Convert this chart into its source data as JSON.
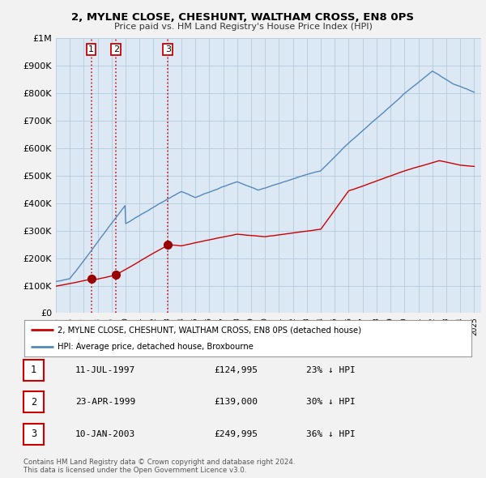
{
  "title": "2, MYLNE CLOSE, CHESHUNT, WALTHAM CROSS, EN8 0PS",
  "subtitle": "Price paid vs. HM Land Registry's House Price Index (HPI)",
  "bg_color": "#f2f2f2",
  "plot_bg_color": "#dce9f5",
  "red_line_color": "#cc0000",
  "blue_line_color": "#5588bb",
  "sale_marker_color": "#990000",
  "vline_color": "#cc0000",
  "grid_color": "#b8cfe0",
  "legend_label_red": "2, MYLNE CLOSE, CHESHUNT, WALTHAM CROSS, EN8 0PS (detached house)",
  "legend_label_blue": "HPI: Average price, detached house, Broxbourne",
  "footer": "Contains HM Land Registry data © Crown copyright and database right 2024.\nThis data is licensed under the Open Government Licence v3.0.",
  "sales": [
    {
      "num": 1,
      "date_x": 1997.53,
      "price": 124995,
      "label": "11-JUL-1997",
      "price_str": "£124,995",
      "hpi_str": "23% ↓ HPI"
    },
    {
      "num": 2,
      "date_x": 1999.31,
      "price": 139000,
      "label": "23-APR-1999",
      "price_str": "£139,000",
      "hpi_str": "30% ↓ HPI"
    },
    {
      "num": 3,
      "date_x": 2003.03,
      "price": 249995,
      "label": "10-JAN-2003",
      "price_str": "£249,995",
      "hpi_str": "36% ↓ HPI"
    }
  ],
  "ylim": [
    0,
    1000000
  ],
  "xlim": [
    1995.0,
    2025.5
  ],
  "yticks": [
    0,
    100000,
    200000,
    300000,
    400000,
    500000,
    600000,
    700000,
    800000,
    900000,
    1000000
  ],
  "ytick_labels": [
    "£0",
    "£100K",
    "£200K",
    "£300K",
    "£400K",
    "£500K",
    "£600K",
    "£700K",
    "£800K",
    "£900K",
    "£1M"
  ],
  "xticks": [
    1995,
    1996,
    1997,
    1998,
    1999,
    2000,
    2001,
    2002,
    2003,
    2004,
    2005,
    2006,
    2007,
    2008,
    2009,
    2010,
    2011,
    2012,
    2013,
    2014,
    2015,
    2016,
    2017,
    2018,
    2019,
    2020,
    2021,
    2022,
    2023,
    2024,
    2025
  ]
}
